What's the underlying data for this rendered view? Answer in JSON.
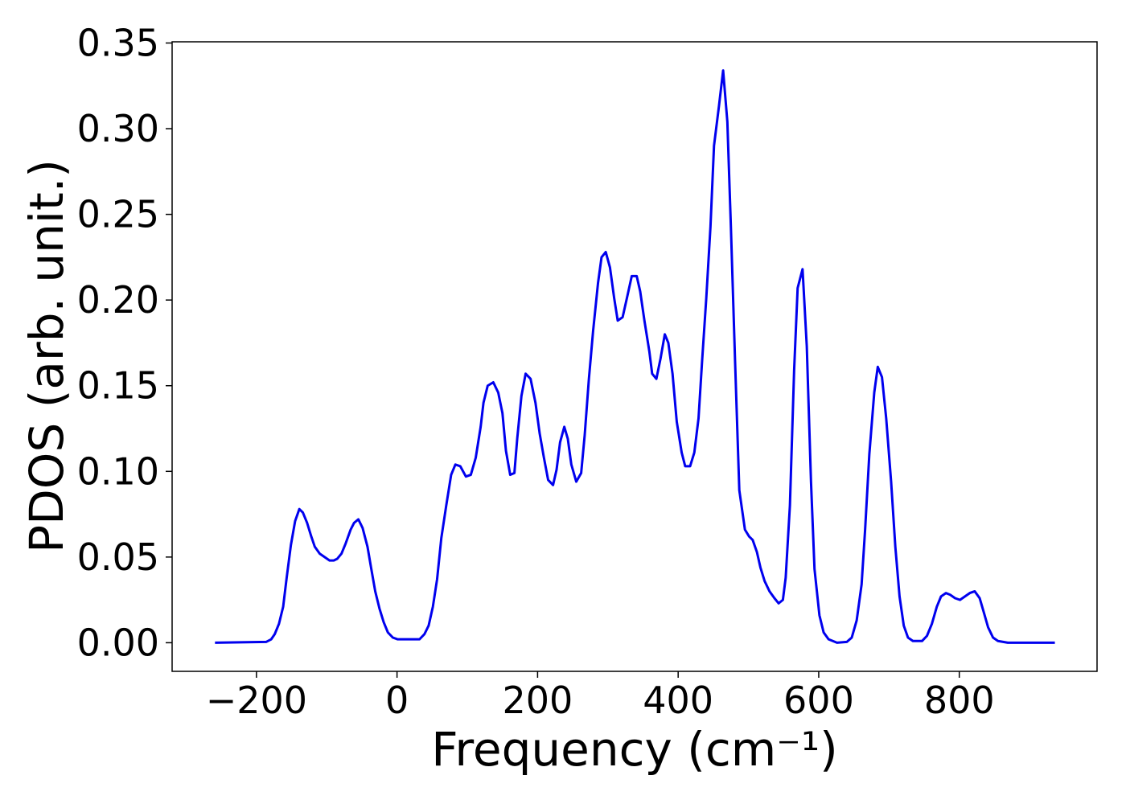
{
  "chart_data": {
    "type": "line",
    "xlabel": "Frequency (cm⁻¹)",
    "ylabel": "PDOS (arb. unit.)",
    "x": [
      -259,
      -186,
      -179,
      -174,
      -168,
      -162,
      -157,
      -151,
      -145,
      -139,
      -134,
      -128,
      -122,
      -117,
      -110,
      -103,
      -96,
      -90,
      -85,
      -79,
      -73,
      -66,
      -61,
      -55,
      -49,
      -42,
      -37,
      -31,
      -25,
      -19,
      -13,
      -6,
      1,
      21,
      32,
      39,
      45,
      51,
      57,
      63,
      70,
      77,
      83,
      90,
      98,
      105,
      112,
      119,
      123,
      129,
      137,
      144,
      150,
      155,
      161,
      167,
      171,
      177,
      183,
      190,
      197,
      203,
      209,
      215,
      222,
      227,
      232,
      238,
      243,
      248,
      255,
      262,
      267,
      273,
      279,
      286,
      291,
      297,
      303,
      309,
      314,
      321,
      327,
      334,
      341,
      346,
      352,
      359,
      363,
      369,
      375,
      381,
      386,
      392,
      398,
      405,
      410,
      417,
      423,
      429,
      434,
      440,
      446,
      451,
      458,
      464,
      470,
      475,
      481,
      487,
      495,
      501,
      506,
      512,
      517,
      523,
      530,
      537,
      543,
      549,
      553,
      559,
      565,
      570,
      577,
      583,
      589,
      594,
      601,
      607,
      614,
      626,
      640,
      647,
      654,
      661,
      666,
      672,
      679,
      684,
      690,
      696,
      703,
      709,
      715,
      721,
      727,
      734,
      747,
      754,
      761,
      768,
      774,
      781,
      787,
      794,
      801,
      808,
      815,
      822,
      829,
      834,
      841,
      848,
      855,
      869,
      936
    ],
    "series": [
      {
        "name": "PDOS",
        "color": "#0000ee",
        "values": [
          0,
          0.0005,
          0.002,
          0.005,
          0.011,
          0.021,
          0.038,
          0.057,
          0.071,
          0.078,
          0.076,
          0.07,
          0.062,
          0.056,
          0.052,
          0.05,
          0.048,
          0.048,
          0.049,
          0.052,
          0.058,
          0.066,
          0.07,
          0.072,
          0.067,
          0.056,
          0.044,
          0.03,
          0.02,
          0.012,
          0.006,
          0.003,
          0.002,
          0.002,
          0.002,
          0.005,
          0.01,
          0.021,
          0.037,
          0.061,
          0.08,
          0.098,
          0.104,
          0.103,
          0.097,
          0.098,
          0.108,
          0.126,
          0.14,
          0.15,
          0.152,
          0.146,
          0.134,
          0.112,
          0.098,
          0.099,
          0.119,
          0.144,
          0.157,
          0.154,
          0.14,
          0.122,
          0.108,
          0.095,
          0.092,
          0.101,
          0.117,
          0.126,
          0.119,
          0.104,
          0.094,
          0.099,
          0.121,
          0.154,
          0.182,
          0.21,
          0.225,
          0.228,
          0.219,
          0.201,
          0.188,
          0.19,
          0.201,
          0.214,
          0.214,
          0.205,
          0.188,
          0.17,
          0.157,
          0.154,
          0.166,
          0.18,
          0.175,
          0.157,
          0.129,
          0.111,
          0.103,
          0.103,
          0.111,
          0.131,
          0.164,
          0.201,
          0.243,
          0.29,
          0.313,
          0.334,
          0.304,
          0.243,
          0.164,
          0.089,
          0.066,
          0.062,
          0.06,
          0.053,
          0.044,
          0.036,
          0.03,
          0.026,
          0.023,
          0.025,
          0.038,
          0.08,
          0.159,
          0.207,
          0.218,
          0.173,
          0.094,
          0.043,
          0.016,
          0.006,
          0.002,
          0,
          0.0005,
          0.003,
          0.013,
          0.034,
          0.066,
          0.11,
          0.146,
          0.161,
          0.155,
          0.131,
          0.094,
          0.056,
          0.027,
          0.01,
          0.003,
          0.001,
          0.001,
          0.004,
          0.011,
          0.021,
          0.027,
          0.029,
          0.028,
          0.026,
          0.025,
          0.027,
          0.029,
          0.03,
          0.026,
          0.019,
          0.009,
          0.003,
          0.001,
          0,
          0
        ]
      }
    ],
    "xlim": [
      -320,
      996
    ],
    "ylim": [
      -0.0167,
      0.3507
    ],
    "xticks": [
      {
        "value": -200,
        "label": "−200"
      },
      0,
      200,
      400,
      600,
      800
    ],
    "yticks": [
      {
        "value": 0,
        "label": "0.00"
      },
      {
        "value": 0.05,
        "label": "0.05"
      },
      {
        "value": 0.1,
        "label": "0.10"
      },
      {
        "value": 0.15,
        "label": "0.15"
      },
      {
        "value": 0.2,
        "label": "0.20"
      },
      {
        "value": 0.25,
        "label": "0.25"
      },
      {
        "value": 0.3,
        "label": "0.30"
      },
      {
        "value": 0.35,
        "label": "0.35"
      }
    ],
    "grid": false
  }
}
